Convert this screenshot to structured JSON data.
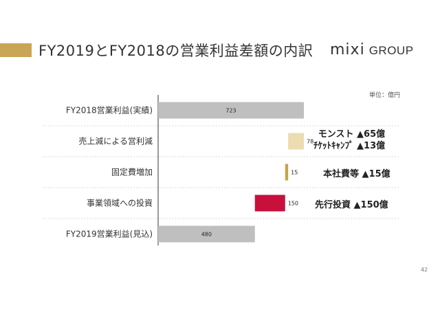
{
  "header": {
    "title": "FY2019とFY2018の営業利益差額の内訳",
    "logo_mark": "mixi",
    "logo_sub": "GROUP",
    "accent_color": "#c9a556"
  },
  "unit_note": "単位：億円",
  "chart_data": {
    "type": "bar",
    "subtype": "waterfall",
    "orientation": "horizontal",
    "categories": [
      "FY2018営業利益(実績)",
      "売上減による営利減",
      "固定費増加",
      "事業領域への投資",
      "FY2019営業利益(見込)"
    ],
    "steps": [
      {
        "category": "FY2018営業利益(実績)",
        "kind": "total",
        "value": 723,
        "label": "723",
        "color": "#bfbfbf"
      },
      {
        "category": "売上減による営利減",
        "kind": "decrease",
        "value": 78,
        "label": "78",
        "color": "#ecdcb0"
      },
      {
        "category": "固定費増加",
        "kind": "decrease",
        "value": 15,
        "label": "15",
        "color": "#c9a24a"
      },
      {
        "category": "事業領域への投資",
        "kind": "decrease",
        "value": 150,
        "label": "150",
        "color": "#c8103c"
      },
      {
        "category": "FY2019営業利益(見込)",
        "kind": "total",
        "value": 480,
        "label": "480",
        "color": "#bfbfbf"
      }
    ],
    "xlim": [
      0,
      723
    ],
    "grid": false,
    "title": "",
    "xlabel": "",
    "ylabel": ""
  },
  "annotations": [
    {
      "lines": [
        "モンスト ▲65億",
        "ﾁｹｯﾄｷｬﾝﾌﾟ ▲13億"
      ]
    },
    {
      "lines": [
        "本社費等 ▲15億"
      ]
    },
    {
      "lines": [
        "先行投資 ▲150億"
      ]
    }
  ],
  "page_number": "42"
}
